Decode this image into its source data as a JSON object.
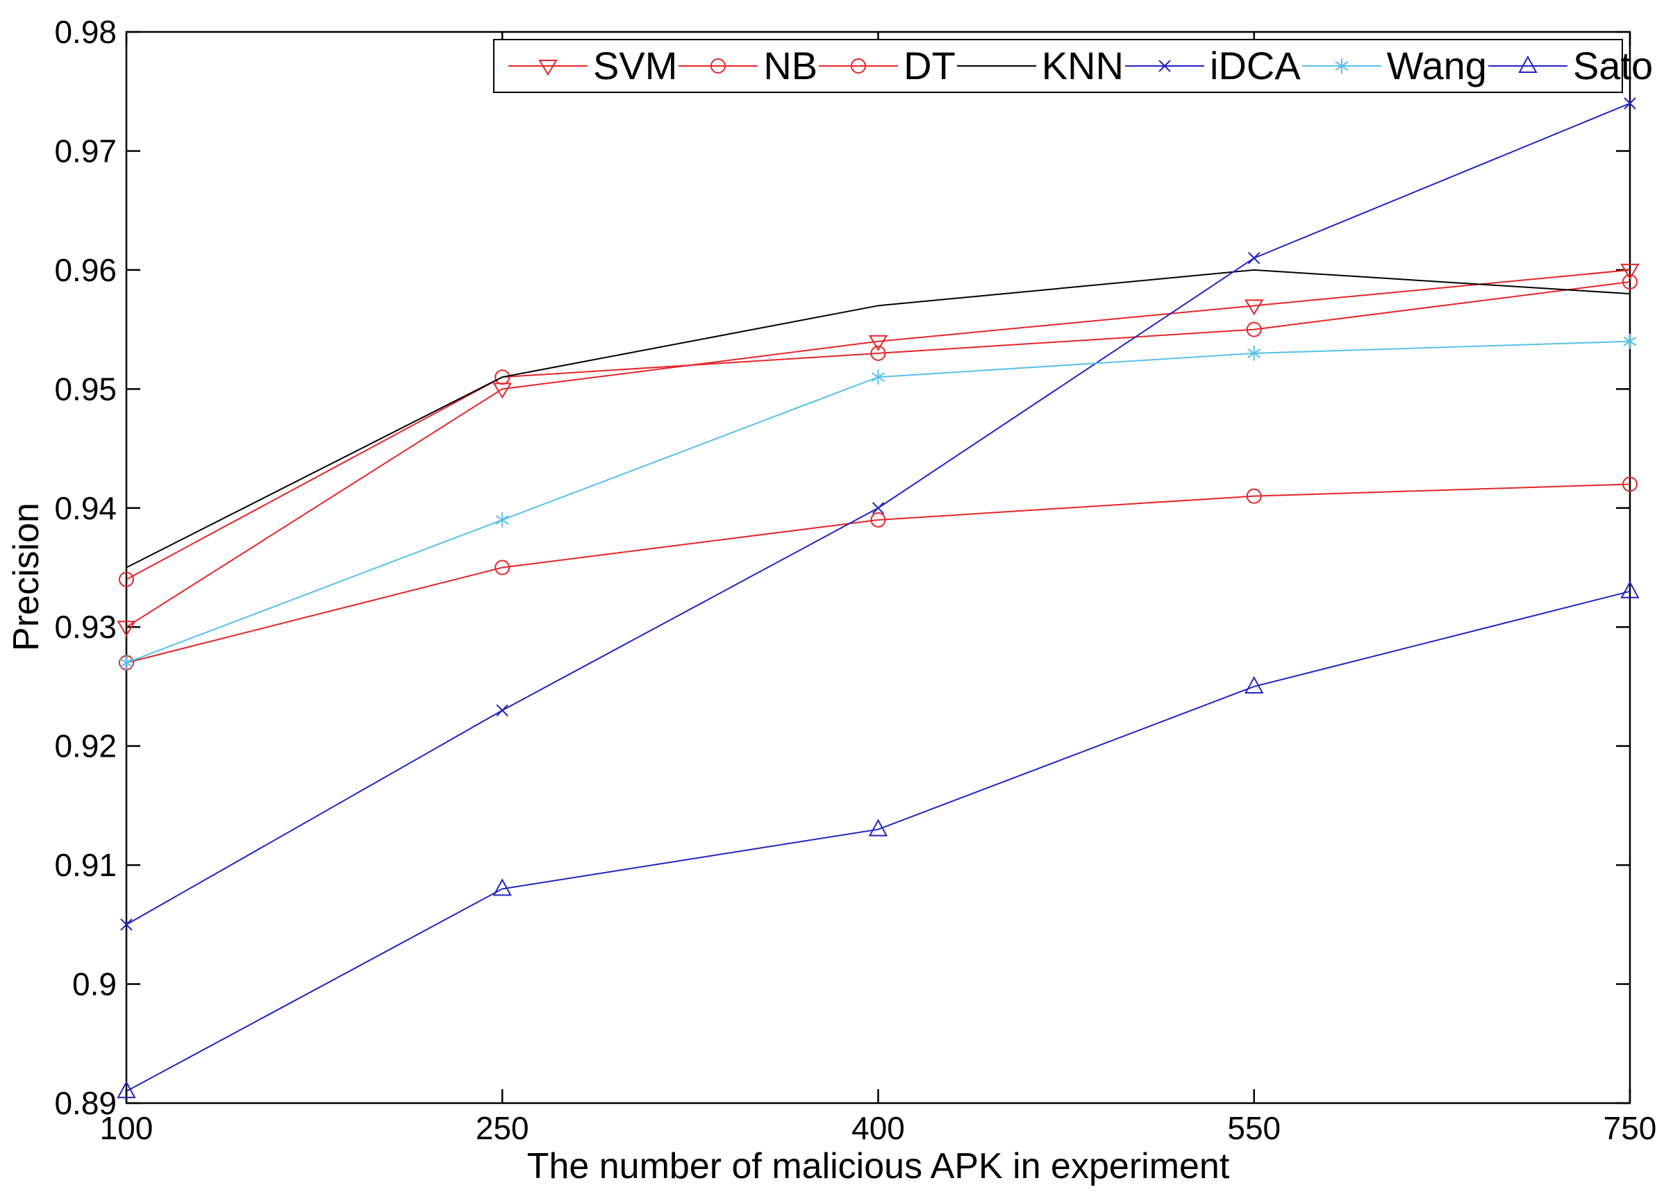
{
  "chart_data": {
    "type": "line",
    "title": "",
    "xlabel": "The number of malicious APK in experiment",
    "ylabel": "Precision",
    "x_categories": [
      "100",
      "250",
      "400",
      "550",
      "750"
    ],
    "x_equal_spacing": true,
    "ylim": [
      0.89,
      0.98
    ],
    "ytick_step": 0.01,
    "ytick_labels": [
      "0.89",
      "0.9",
      "0.91",
      "0.92",
      "0.93",
      "0.94",
      "0.95",
      "0.96",
      "0.97",
      "0.98"
    ],
    "grid": false,
    "legend_position": "top-inside-horizontal",
    "axis_color": "#000000",
    "background_color": "#ffffff",
    "series": [
      {
        "name": "SVM",
        "color": "#e62428",
        "marker": "triangle-down",
        "values": [
          0.93,
          0.95,
          0.954,
          0.957,
          0.96
        ]
      },
      {
        "name": "NB",
        "color": "#e62428",
        "marker": "circle",
        "values": [
          0.934,
          0.951,
          0.953,
          0.955,
          0.959
        ]
      },
      {
        "name": "DT",
        "color": "#e62428",
        "marker": "circle",
        "values": [
          0.927,
          0.935,
          0.939,
          0.941,
          0.942
        ]
      },
      {
        "name": "KNN",
        "color": "#000000",
        "marker": "none",
        "values": [
          0.935,
          0.951,
          0.957,
          0.96,
          0.958
        ]
      },
      {
        "name": "iDCA",
        "color": "#2222c2",
        "marker": "x",
        "values": [
          0.905,
          0.923,
          0.94,
          0.961,
          0.974
        ]
      },
      {
        "name": "Wang",
        "color": "#55c1e9",
        "marker": "asterisk",
        "values": [
          0.927,
          0.939,
          0.951,
          0.953,
          0.954
        ]
      },
      {
        "name": "Sato",
        "color": "#2222c2",
        "marker": "triangle-up",
        "values": [
          0.891,
          0.908,
          0.913,
          0.925,
          0.933
        ]
      }
    ]
  }
}
